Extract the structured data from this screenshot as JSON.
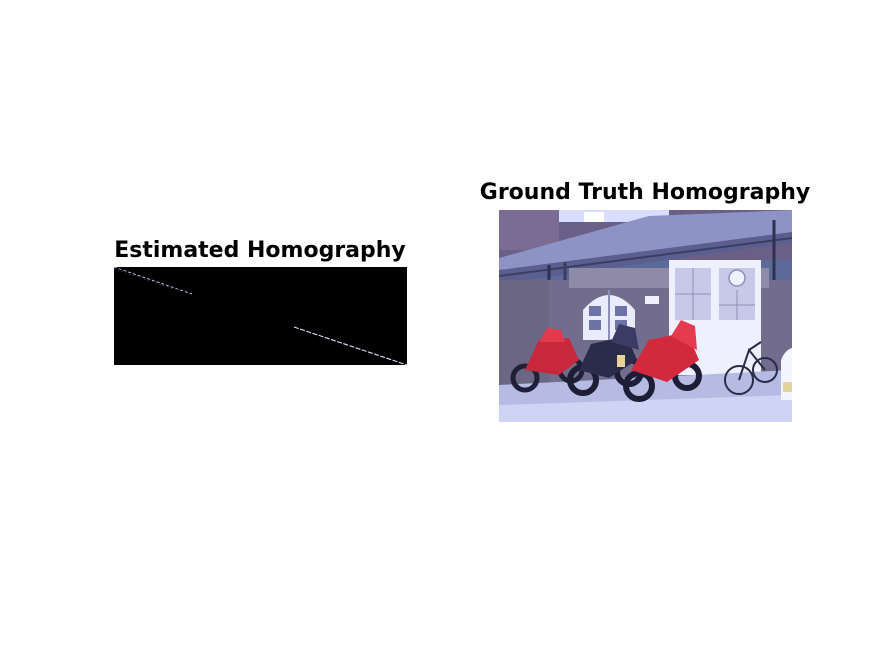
{
  "panels": {
    "estimated": {
      "title": "Estimated Homography"
    },
    "ground_truth": {
      "title": "Ground Truth Homography"
    }
  },
  "colors": {
    "background": "#ffffff",
    "title_text": "#000000",
    "estimated_fill": "#000000",
    "estimated_streak": "#d8dcff",
    "photo_sky": "#cfd6ff",
    "photo_wall": "#6d6f8e",
    "photo_roof": "#7a7fae",
    "photo_door": "#e8ebff",
    "photo_ground": "#b8bde6",
    "motorcycle_red": "#d22a3c",
    "motorcycle_dark": "#23243f"
  }
}
